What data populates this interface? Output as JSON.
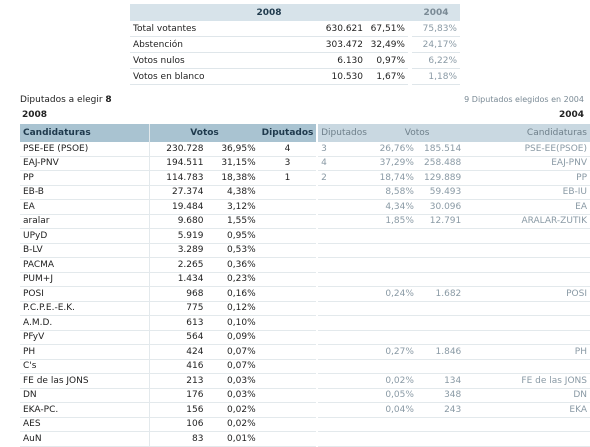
{
  "summary": {
    "year_new": "2008",
    "year_old": "2004",
    "rows": [
      {
        "label": "Total votantes",
        "num": "630.621",
        "pct": "67,51%",
        "old": "75,83%"
      },
      {
        "label": "Abstención",
        "num": "303.472",
        "pct": "32,49%",
        "old": "24,17%"
      },
      {
        "label": "Votos nulos",
        "num": "6.130",
        "pct": "0,97%",
        "old": "6,22%"
      },
      {
        "label": "Votos en blanco",
        "num": "10.530",
        "pct": "1,67%",
        "old": "1,18%"
      }
    ]
  },
  "diputados": {
    "label": "Diputados a elegir",
    "value": "8",
    "old_text": "9 Diputados elegidos en 2004"
  },
  "main": {
    "year_new": "2008",
    "year_old": "2004",
    "headers": {
      "cand": "Candidaturas",
      "votos": "Votos",
      "dip": "Diputados",
      "old_dip": "Diputados",
      "old_votos": "Votos",
      "old_cand": "Candidaturas"
    },
    "rows": [
      {
        "name": "PSE-EE (PSOE)",
        "votes": "230.728",
        "pct": "36,95%",
        "dip": "4",
        "old_dip": "3",
        "old_pct": "26,76%",
        "old_votes": "185.514",
        "old_name": "PSE-EE(PSOE)"
      },
      {
        "name": "EAJ-PNV",
        "votes": "194.511",
        "pct": "31,15%",
        "dip": "3",
        "old_dip": "4",
        "old_pct": "37,29%",
        "old_votes": "258.488",
        "old_name": "EAJ-PNV"
      },
      {
        "name": "PP",
        "votes": "114.783",
        "pct": "18,38%",
        "dip": "1",
        "old_dip": "2",
        "old_pct": "18,74%",
        "old_votes": "129.889",
        "old_name": "PP"
      },
      {
        "name": "EB-B",
        "votes": "27.374",
        "pct": "4,38%",
        "dip": "",
        "old_dip": "",
        "old_pct": "8,58%",
        "old_votes": "59.493",
        "old_name": "EB-IU"
      },
      {
        "name": "EA",
        "votes": "19.484",
        "pct": "3,12%",
        "dip": "",
        "old_dip": "",
        "old_pct": "4,34%",
        "old_votes": "30.096",
        "old_name": "EA"
      },
      {
        "name": "aralar",
        "votes": "9.680",
        "pct": "1,55%",
        "dip": "",
        "old_dip": "",
        "old_pct": "1,85%",
        "old_votes": "12.791",
        "old_name": "ARALAR-ZUTIK"
      },
      {
        "name": "UPyD",
        "votes": "5.919",
        "pct": "0,95%",
        "dip": "",
        "old_dip": "",
        "old_pct": "",
        "old_votes": "",
        "old_name": ""
      },
      {
        "name": "B-LV",
        "votes": "3.289",
        "pct": "0,53%",
        "dip": "",
        "old_dip": "",
        "old_pct": "",
        "old_votes": "",
        "old_name": ""
      },
      {
        "name": "PACMA",
        "votes": "2.265",
        "pct": "0,36%",
        "dip": "",
        "old_dip": "",
        "old_pct": "",
        "old_votes": "",
        "old_name": ""
      },
      {
        "name": "PUM+J",
        "votes": "1.434",
        "pct": "0,23%",
        "dip": "",
        "old_dip": "",
        "old_pct": "",
        "old_votes": "",
        "old_name": ""
      },
      {
        "name": "POSI",
        "votes": "968",
        "pct": "0,16%",
        "dip": "",
        "old_dip": "",
        "old_pct": "0,24%",
        "old_votes": "1.682",
        "old_name": "POSI"
      },
      {
        "name": "P.C.P.E.-E.K.",
        "votes": "775",
        "pct": "0,12%",
        "dip": "",
        "old_dip": "",
        "old_pct": "",
        "old_votes": "",
        "old_name": ""
      },
      {
        "name": "A.M.D.",
        "votes": "613",
        "pct": "0,10%",
        "dip": "",
        "old_dip": "",
        "old_pct": "",
        "old_votes": "",
        "old_name": ""
      },
      {
        "name": "PFyV",
        "votes": "564",
        "pct": "0,09%",
        "dip": "",
        "old_dip": "",
        "old_pct": "",
        "old_votes": "",
        "old_name": ""
      },
      {
        "name": "PH",
        "votes": "424",
        "pct": "0,07%",
        "dip": "",
        "old_dip": "",
        "old_pct": "0,27%",
        "old_votes": "1.846",
        "old_name": "PH"
      },
      {
        "name": "C's",
        "votes": "416",
        "pct": "0,07%",
        "dip": "",
        "old_dip": "",
        "old_pct": "",
        "old_votes": "",
        "old_name": ""
      },
      {
        "name": "FE de las JONS",
        "votes": "213",
        "pct": "0,03%",
        "dip": "",
        "old_dip": "",
        "old_pct": "0,02%",
        "old_votes": "134",
        "old_name": "FE de las JONS"
      },
      {
        "name": "DN",
        "votes": "176",
        "pct": "0,03%",
        "dip": "",
        "old_dip": "",
        "old_pct": "0,05%",
        "old_votes": "348",
        "old_name": "DN"
      },
      {
        "name": "EKA-PC.",
        "votes": "156",
        "pct": "0,02%",
        "dip": "",
        "old_dip": "",
        "old_pct": "0,04%",
        "old_votes": "243",
        "old_name": "EKA"
      },
      {
        "name": "AES",
        "votes": "106",
        "pct": "0,02%",
        "dip": "",
        "old_dip": "",
        "old_pct": "",
        "old_votes": "",
        "old_name": ""
      },
      {
        "name": "AuN",
        "votes": "83",
        "pct": "0,01%",
        "dip": "",
        "old_dip": "",
        "old_pct": "",
        "old_votes": "",
        "old_name": ""
      }
    ]
  }
}
